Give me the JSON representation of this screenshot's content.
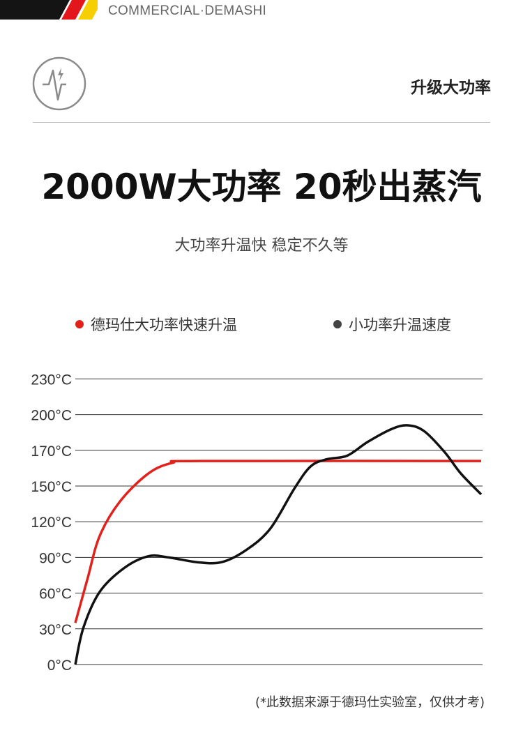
{
  "brand": {
    "name": "COMMERCIAL·DEMASHI",
    "stripe_colors": [
      "#141414",
      "#e3161b",
      "#f6cf00"
    ]
  },
  "section": {
    "icon": "power-pulse-icon",
    "title": "升级大功率"
  },
  "headline": "2000W大功率 20秒出蒸汽",
  "subheadline": "大功率升温快 稳定不久等",
  "footnote": "(*此数据来源于德玛仕实验室，仅供才考)",
  "chart_data": {
    "type": "line",
    "title": "",
    "xlabel": "",
    "ylabel": "",
    "y_ticks": [
      0,
      30,
      60,
      90,
      120,
      150,
      170,
      200,
      230
    ],
    "y_tick_labels": [
      "0°C",
      "30°C",
      "60°C",
      "90°C",
      "120°C",
      "150°C",
      "170°C",
      "200°C",
      "230°C"
    ],
    "xlim": [
      0,
      100
    ],
    "grid": true,
    "legend_position": "top",
    "series": [
      {
        "name": "德玛仕大功率快速升温",
        "color": "#e3211b",
        "x": [
          0,
          3,
          6,
          11,
          18,
          24,
          31,
          100
        ],
        "y": [
          35,
          72,
          108,
          137,
          157,
          163,
          164,
          164
        ]
      },
      {
        "name": "小功率升温速度",
        "color": "#111111",
        "legend_color": "#444444",
        "x": [
          0,
          2,
          6,
          12,
          18,
          23,
          30,
          36,
          42,
          48,
          54,
          58,
          62,
          67,
          72,
          78,
          82,
          86,
          91,
          95,
          100
        ],
        "y": [
          0,
          31,
          61,
          81,
          91,
          90,
          86,
          86,
          96,
          114,
          148,
          161,
          165,
          167,
          177,
          188,
          191,
          186,
          169,
          157,
          143
        ]
      }
    ]
  }
}
